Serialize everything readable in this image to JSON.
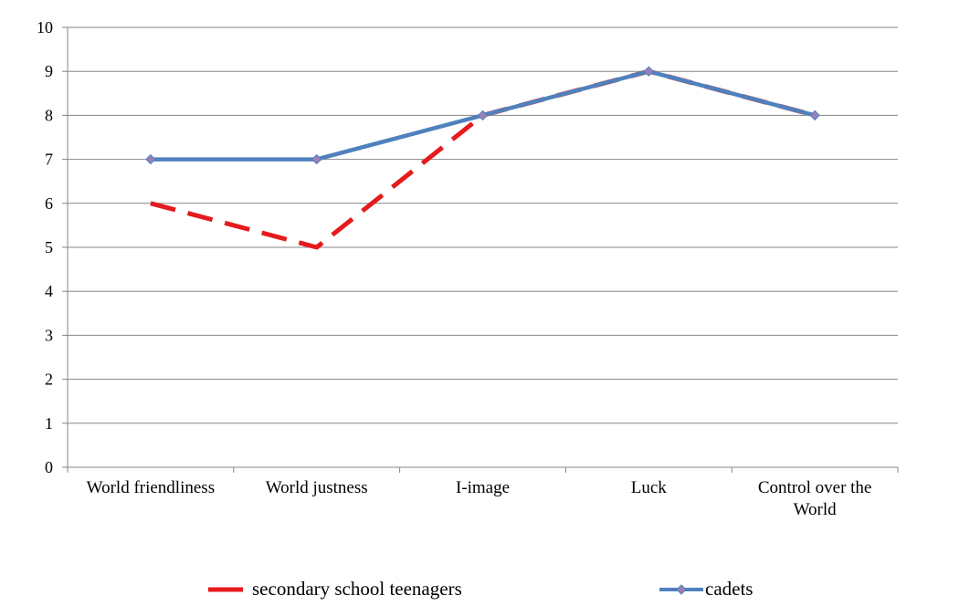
{
  "chart_data": {
    "type": "line",
    "categories": [
      "World friendliness",
      "World justness",
      "I-image",
      "Luck",
      "Control over the World"
    ],
    "series": [
      {
        "name": "secondary school teenagers",
        "values": [
          6,
          5,
          8,
          9,
          8
        ],
        "color": "#e41a1c",
        "style": "dashed"
      },
      {
        "name": "cadets",
        "values": [
          7,
          7,
          8,
          9,
          8
        ],
        "color": "#4f81bd",
        "marker": "diamond",
        "marker_color": "#9b7fb8"
      }
    ],
    "ylim": [
      0,
      10
    ],
    "yticks": [
      "0",
      "1",
      "2",
      "3",
      "4",
      "5",
      "6",
      "7",
      "8",
      "9",
      "10"
    ],
    "grid": true,
    "legend_position": "bottom"
  }
}
